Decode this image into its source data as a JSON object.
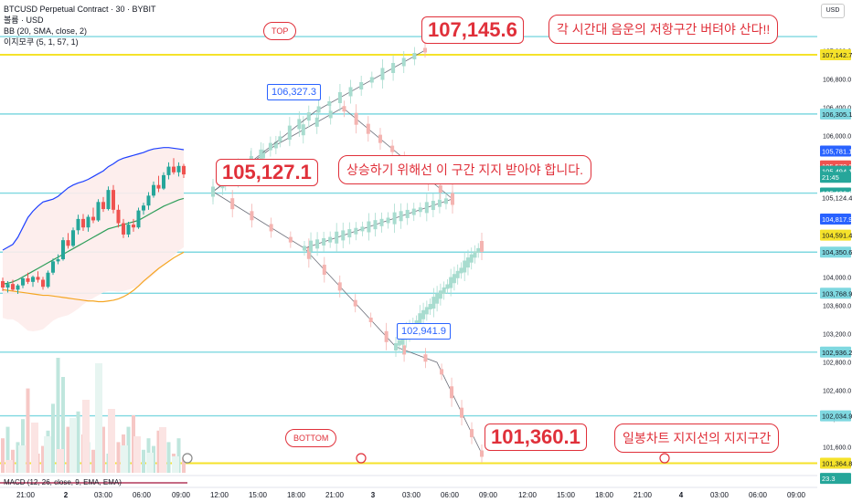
{
  "legend": {
    "symbol": "BTCUSD Perpetual Contract · 30 · BYBIT",
    "currency_line": "볼륨 · USD",
    "bb": "BB (20, SMA, close, 2)",
    "ma": "이지모쿠 (5, 1, 57, 1)"
  },
  "macd_label": "MACD (12, 26, close, 9, EMA, EMA)",
  "currency_badge": "USD",
  "annotations": {
    "top_price": "107,145.6",
    "left_price": "105,127.1",
    "bottom_price": "101,360.1",
    "blue_top": "106,327.3",
    "blue_mid": "102,941.9",
    "top_label": "TOP",
    "bottom_label": "BOTTOM",
    "note_resistance": "각 시간대 음운의 저항구간 버텨야 산다!!",
    "note_support": "상승하기 위해선 이 구간 지지 받아야 합니다.",
    "note_daily": "일봉차트 지지선의 지지구간"
  },
  "colors": {
    "up": "#26a69a",
    "down": "#ef5350",
    "cyan_line": "#7fd8e0",
    "yellow_line": "#f5e22a",
    "red": "#e0303a",
    "blue": "#2962ff",
    "bb_upper": "#1e40ff",
    "bb_basis": "#2e9e5a",
    "orange_ma": "#f5a623"
  },
  "chart_data": {
    "type": "candlestick",
    "y_axis_ticks": [
      "107,200.0",
      "106,800.0",
      "106,400.0",
      "106,000.0",
      "105,200.0",
      "104,800.0",
      "104,400.0",
      "104,000.0",
      "103,600.0",
      "103,200.0",
      "102,800.0",
      "102,400.0",
      "102,000.0",
      "101,600.0"
    ],
    "price_tags": [
      {
        "label": "107,142.7",
        "bg": "#f5e22a",
        "fg": "#131722",
        "value": 107142.7
      },
      {
        "label": "106,305.1",
        "bg": "#7fd8e0",
        "fg": "#131722",
        "value": 106305.1
      },
      {
        "label": "105,781.1",
        "bg": "#2962ff",
        "fg": "#ffffff",
        "value": 105781.1
      },
      {
        "label": "105,570.6",
        "bg": "#ef5350",
        "fg": "#ffffff",
        "value": 105570.6
      },
      {
        "label": "105,494.1",
        "bg": "#26a69a",
        "fg": "#ffffff",
        "value": 105494.1
      },
      {
        "label": "21:45",
        "bg": "#26a69a",
        "fg": "#ffffff",
        "value": 105410
      },
      {
        "label": "105,186.3",
        "bg": "#26a69a",
        "fg": "#ffffff",
        "value": 105186.3
      },
      {
        "label": "105,124.4",
        "bg": "#ffffff",
        "fg": "#131722",
        "value": 105124.4
      },
      {
        "label": "104,817.9",
        "bg": "#2962ff",
        "fg": "#ffffff",
        "value": 104817.9
      },
      {
        "label": "104,591.4",
        "bg": "#f5e22a",
        "fg": "#131722",
        "value": 104591.4
      },
      {
        "label": "104,350.6",
        "bg": "#7fd8e0",
        "fg": "#131722",
        "value": 104350.6
      },
      {
        "label": "103,768.9",
        "bg": "#7fd8e0",
        "fg": "#131722",
        "value": 103768.9
      },
      {
        "label": "102,936.2",
        "bg": "#7fd8e0",
        "fg": "#131722",
        "value": 102936.2
      },
      {
        "label": "102,034.9",
        "bg": "#7fd8e0",
        "fg": "#131722",
        "value": 102034.9
      },
      {
        "label": "101,364.8",
        "bg": "#f5e22a",
        "fg": "#131722",
        "value": 101364.8
      },
      {
        "label": "23.3",
        "bg": "#26a69a",
        "fg": "#ffffff",
        "value": 101150
      }
    ],
    "horizontal_lines": [
      {
        "value": 107142.7,
        "kind": "yellow"
      },
      {
        "value": 106305.1,
        "kind": "cyan"
      },
      {
        "value": 105186.3,
        "kind": "cyan"
      },
      {
        "value": 104350.6,
        "kind": "cyan"
      },
      {
        "value": 103768.9,
        "kind": "cyan"
      },
      {
        "value": 102936.2,
        "kind": "cyan"
      },
      {
        "value": 102034.9,
        "kind": "cyan"
      },
      {
        "value": 101364.8,
        "kind": "yellow"
      },
      {
        "value": 107400,
        "kind": "cyan"
      }
    ],
    "x_tick_labels": [
      "21:00",
      "2",
      "03:00",
      "06:00",
      "09:00",
      "12:00",
      "15:00",
      "18:00",
      "21:00",
      "3",
      "03:00",
      "06:00",
      "09:00",
      "12:00",
      "15:00",
      "18:00",
      "21:00",
      "4",
      "03:00",
      "06:00",
      "09:00"
    ],
    "real_candles": [
      [
        103940,
        103990,
        103800,
        103850
      ],
      [
        103850,
        103940,
        103780,
        103900
      ],
      [
        103900,
        103960,
        103800,
        103820
      ],
      [
        103820,
        103900,
        103760,
        103880
      ],
      [
        103880,
        104010,
        103840,
        103980
      ],
      [
        103980,
        104060,
        103900,
        103930
      ],
      [
        103930,
        104020,
        103860,
        104000
      ],
      [
        104000,
        104080,
        103920,
        103960
      ],
      [
        103960,
        104000,
        103820,
        103860
      ],
      [
        103860,
        104090,
        103840,
        104060
      ],
      [
        104060,
        104260,
        104030,
        104220
      ],
      [
        104220,
        104320,
        104180,
        104250
      ],
      [
        104250,
        104560,
        104230,
        104520
      ],
      [
        104520,
        104620,
        104400,
        104440
      ],
      [
        104440,
        104700,
        104420,
        104660
      ],
      [
        104660,
        104880,
        104600,
        104820
      ],
      [
        104820,
        104890,
        104650,
        104700
      ],
      [
        104700,
        104880,
        104640,
        104850
      ],
      [
        104850,
        104980,
        104760,
        104800
      ],
      [
        104800,
        105100,
        104780,
        105060
      ],
      [
        105060,
        105130,
        104920,
        104960
      ],
      [
        104960,
        105280,
        104940,
        105230
      ],
      [
        105230,
        105300,
        104900,
        104950
      ],
      [
        104950,
        105020,
        104700,
        104760
      ],
      [
        104760,
        104820,
        104550,
        104600
      ],
      [
        104600,
        104780,
        104560,
        104740
      ],
      [
        104740,
        104820,
        104640,
        104700
      ],
      [
        104700,
        104980,
        104680,
        104940
      ],
      [
        104940,
        105050,
        104880,
        105010
      ],
      [
        105010,
        105200,
        104950,
        105150
      ],
      [
        105150,
        105350,
        105120,
        105300
      ],
      [
        105300,
        105430,
        105200,
        105250
      ],
      [
        105250,
        105480,
        105230,
        105440
      ],
      [
        105440,
        105620,
        105380,
        105560
      ],
      [
        105560,
        105680,
        105450,
        105480
      ],
      [
        105480,
        105620,
        105420,
        105570
      ],
      [
        105570,
        105600,
        105400,
        105450
      ]
    ],
    "real_volumes": [
      9,
      12,
      6,
      8,
      14,
      22,
      10,
      5,
      7,
      11,
      18,
      30,
      25,
      12,
      9,
      16,
      10,
      8,
      6,
      9,
      12,
      5,
      7,
      8,
      10,
      12,
      15,
      8,
      6,
      9,
      7,
      11,
      5,
      8,
      5,
      9,
      4
    ],
    "bb_upper": [
      104380,
      104420,
      104460,
      104560,
      104700,
      104840,
      104930,
      105000,
      105060,
      105080,
      105100,
      105140,
      105200,
      105260,
      105300,
      105330,
      105350,
      105380,
      105420,
      105460,
      105500,
      105560,
      105600,
      105650,
      105680,
      105700,
      105720,
      105740,
      105760,
      105790,
      105810,
      105820,
      105830,
      105830,
      105820,
      105810,
      105800
    ],
    "bb_basis": [
      103900,
      103910,
      103930,
      103960,
      104000,
      104040,
      104080,
      104120,
      104160,
      104200,
      104240,
      104280,
      104320,
      104360,
      104400,
      104440,
      104480,
      104520,
      104560,
      104600,
      104640,
      104680,
      104700,
      104720,
      104740,
      104760,
      104780,
      104800,
      104840,
      104880,
      104920,
      104960,
      105000,
      105030,
      105060,
      105090,
      105110
    ],
    "orange_ma": [
      103820,
      103810,
      103800,
      103790,
      103780,
      103770,
      103760,
      103750,
      103740,
      103740,
      103730,
      103720,
      103710,
      103700,
      103690,
      103680,
      103670,
      103660,
      103660,
      103650,
      103650,
      103660,
      103670,
      103690,
      103720,
      103760,
      103810,
      103870,
      103940,
      104000,
      104060,
      104120,
      104170,
      104220,
      104270,
      104310,
      104350
    ],
    "projection_paths": [
      [
        [
          233,
          210
        ],
        [
          333,
          272
        ],
        [
          433,
          380
        ],
        [
          478,
          397
        ],
        [
          527,
          497
        ]
      ],
      [
        [
          233,
          210
        ],
        [
          300,
          160
        ],
        [
          375,
          118
        ],
        [
          495,
          218
        ]
      ],
      [
        [
          233,
          210
        ],
        [
          345,
          122
        ],
        [
          465,
          55
        ]
      ],
      [
        [
          333,
          272
        ],
        [
          495,
          218
        ]
      ],
      [
        [
          433,
          380
        ],
        [
          527,
          270
        ]
      ]
    ]
  }
}
